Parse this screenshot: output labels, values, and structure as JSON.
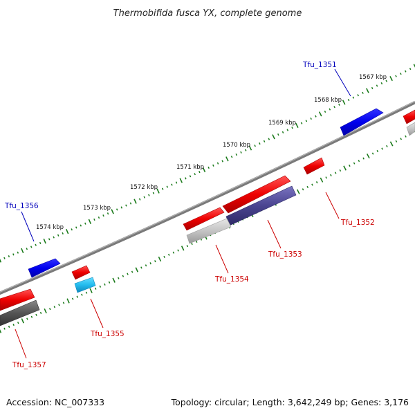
{
  "title": "Thermobifida fusca YX, complete genome",
  "footer": {
    "accession": "Accession: NC_007333",
    "summary": "Topology: circular; Length: 3,642,249 bp; Genes: 3,176"
  },
  "colors": {
    "backbone": "#7a7a7a",
    "tick": "#1a7a1a",
    "forward_cds": "#ee0000",
    "reverse_cds": "#0000ee",
    "rna": "#22bbee",
    "pseudo_light": "#c0c0c0",
    "pseudo_dark": "#555555",
    "purple": "#4a4490",
    "label_forward": "#cc0000",
    "label_reverse": "#0000bb"
  },
  "kbp_labels": [
    "1567 kbp",
    "1568 kbp",
    "1569 kbp",
    "1570 kbp",
    "1571 kbp",
    "1572 kbp",
    "1573 kbp",
    "1574 kbp"
  ],
  "genes": [
    {
      "label": "Tfu_1351",
      "strand": "reverse"
    },
    {
      "label": "Tfu_1352",
      "strand": "forward"
    },
    {
      "label": "Tfu_1353",
      "strand": "forward"
    },
    {
      "label": "Tfu_1354",
      "strand": "forward"
    },
    {
      "label": "Tfu_1355",
      "strand": "forward"
    },
    {
      "label": "Tfu_1356",
      "strand": "reverse"
    },
    {
      "label": "Tfu_1357",
      "strand": "forward"
    }
  ]
}
